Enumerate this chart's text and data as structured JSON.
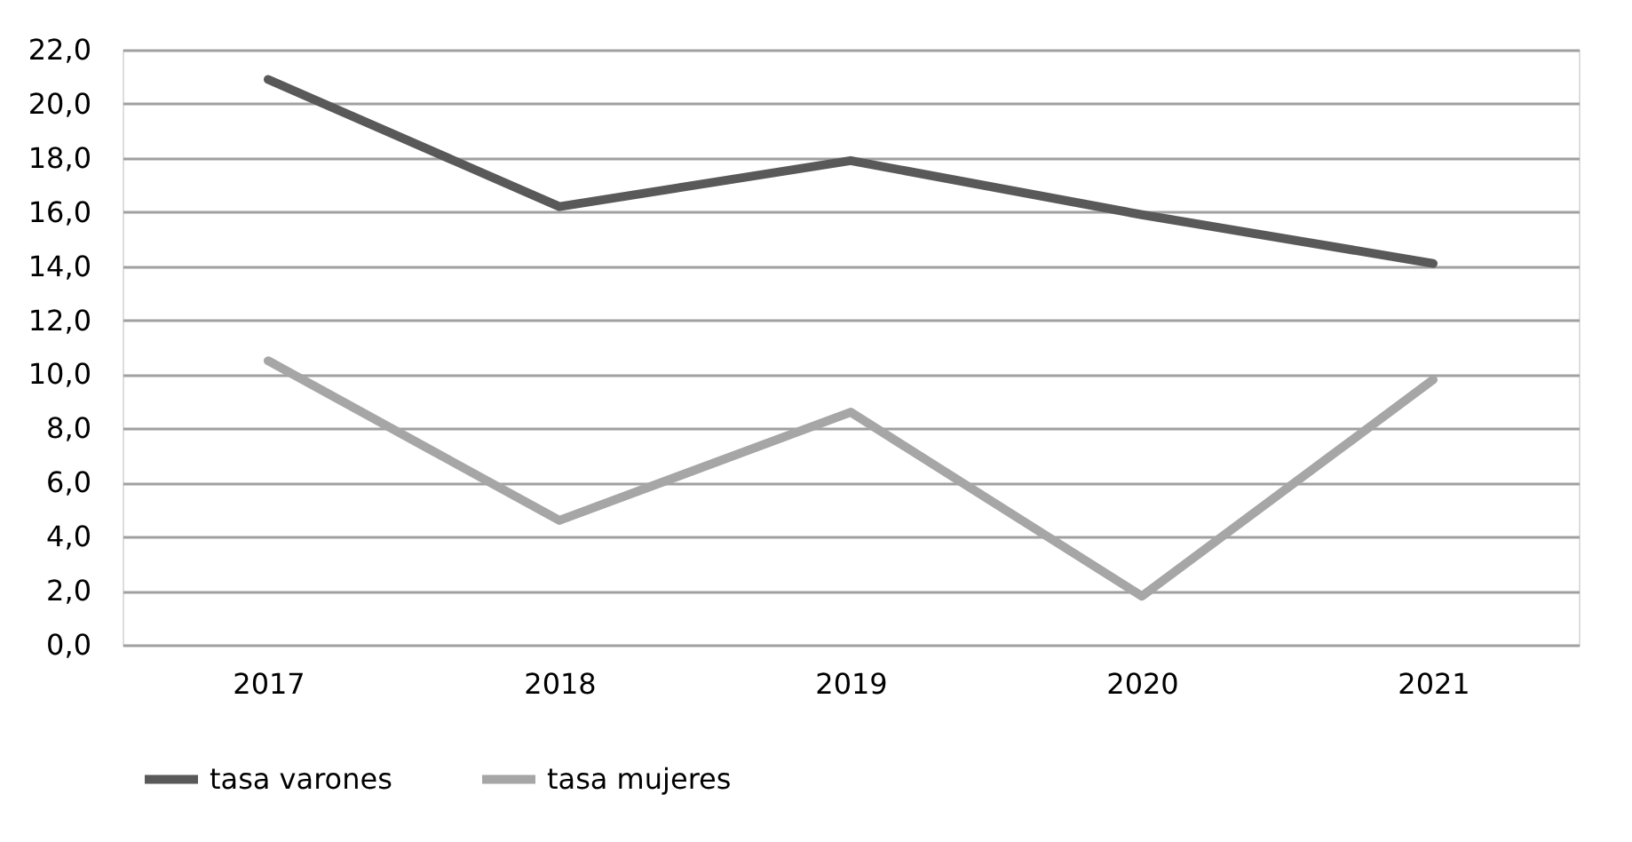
{
  "chart_data": {
    "type": "line",
    "categories": [
      "2017",
      "2018",
      "2019",
      "2020",
      "2021"
    ],
    "series": [
      {
        "name": "tasa varones",
        "color": "#595959",
        "values": [
          20.9,
          16.2,
          17.9,
          15.9,
          14.1
        ]
      },
      {
        "name": "tasa mujeres",
        "color": "#a6a6a6",
        "values": [
          10.5,
          4.6,
          8.6,
          1.8,
          9.8
        ]
      }
    ],
    "ylim": [
      0,
      22
    ],
    "yticks": [
      {
        "value": 0,
        "label": "0,0"
      },
      {
        "value": 2,
        "label": "2,0"
      },
      {
        "value": 4,
        "label": "4,0"
      },
      {
        "value": 6,
        "label": "6,0"
      },
      {
        "value": 8,
        "label": "8,0"
      },
      {
        "value": 10,
        "label": "10,0"
      },
      {
        "value": 12,
        "label": "12,0"
      },
      {
        "value": 14,
        "label": "14,0"
      },
      {
        "value": 16,
        "label": "16,0"
      },
      {
        "value": 18,
        "label": "18,0"
      },
      {
        "value": 20,
        "label": "20,0"
      },
      {
        "value": 22,
        "label": "22,0"
      }
    ],
    "grid": "y",
    "legend": "bottom",
    "marker": "none",
    "line_style": "solid"
  }
}
